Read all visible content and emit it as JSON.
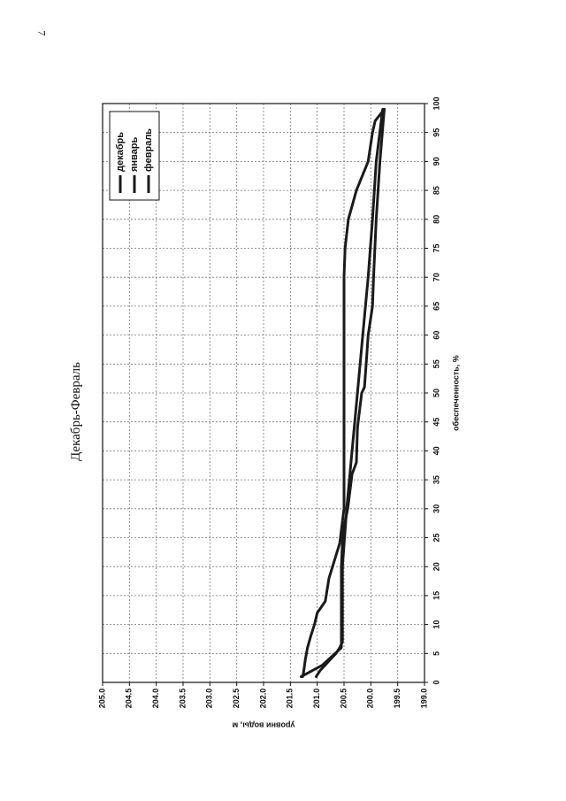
{
  "page": {
    "number": "7"
  },
  "chart_data": {
    "type": "line",
    "title": "Декабрь-Февраль",
    "xlabel": "обеспеченность, %",
    "ylabel": "уровни воды, м",
    "xlim": [
      0,
      100
    ],
    "ylim": [
      199.0,
      205.0
    ],
    "x_ticks": [
      "0",
      "5",
      "10",
      "15",
      "20",
      "25",
      "30",
      "35",
      "40",
      "45",
      "50",
      "55",
      "60",
      "65",
      "70",
      "75",
      "80",
      "85",
      "90",
      "95",
      "100"
    ],
    "y_ticks": [
      "199.0",
      "199.5",
      "200.0",
      "200.5",
      "201.0",
      "201.5",
      "202.0",
      "202.5",
      "203.0",
      "203.5",
      "204.0",
      "204.5",
      "205.0"
    ],
    "y_reversed": true,
    "grid": true,
    "legend_position": "top-right",
    "series": [
      {
        "name": "декабрь",
        "x": [
          1,
          2,
          4,
          6,
          8,
          10,
          12,
          14,
          18,
          24,
          30,
          40,
          50,
          60,
          70,
          75,
          80,
          85,
          90,
          95,
          97,
          99
        ],
        "y": [
          201.27,
          201.25,
          201.22,
          201.18,
          201.12,
          201.05,
          201.0,
          200.85,
          200.78,
          200.58,
          200.5,
          200.5,
          200.5,
          200.5,
          200.5,
          200.48,
          200.42,
          200.27,
          200.05,
          199.97,
          199.92,
          199.75
        ]
      },
      {
        "name": "январь",
        "x": [
          1,
          3,
          6,
          8,
          10,
          20,
          26,
          30,
          36,
          38,
          44,
          50,
          51,
          56,
          60,
          65,
          70,
          80,
          90,
          99
        ],
        "y": [
          201.3,
          200.9,
          200.55,
          200.55,
          200.55,
          200.55,
          200.52,
          200.43,
          200.35,
          200.27,
          200.25,
          200.17,
          200.12,
          200.08,
          200.05,
          199.97,
          199.95,
          199.9,
          199.83,
          199.75
        ]
      },
      {
        "name": "февраль",
        "x": [
          1,
          2,
          3,
          4,
          5,
          6,
          7,
          20,
          30,
          40,
          50,
          60,
          70,
          80,
          90,
          99
        ],
        "y": [
          201.02,
          200.95,
          200.85,
          200.75,
          200.65,
          200.58,
          200.53,
          200.53,
          200.45,
          200.35,
          200.25,
          200.15,
          200.05,
          199.97,
          199.9,
          199.78
        ]
      }
    ]
  }
}
